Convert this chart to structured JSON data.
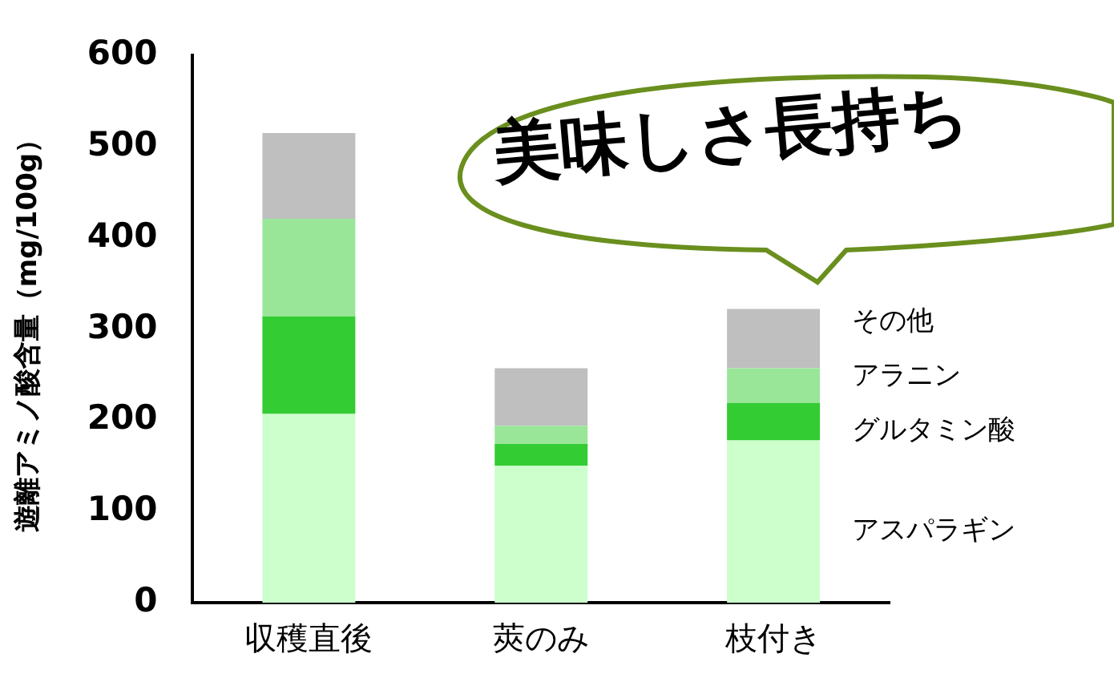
{
  "chart_data": {
    "type": "bar",
    "stacked": true,
    "ylabel": "遊離アミノ酸含量（mg/100g）",
    "categories": [
      "収穫直後",
      "莢のみ",
      "枝付き"
    ],
    "series": [
      {
        "name": "アスパラギン",
        "color": "#ccffcc",
        "values": [
          207,
          150,
          178
        ]
      },
      {
        "name": "グルタミン酸",
        "color": "#33cc33",
        "values": [
          107,
          24,
          41
        ]
      },
      {
        "name": "アラニン",
        "color": "#99e699",
        "values": [
          107,
          20,
          38
        ]
      },
      {
        "name": "その他",
        "color": "#bfbfbf",
        "values": [
          94,
          63,
          65
        ]
      }
    ],
    "ylim": [
      0,
      600
    ],
    "yticks": [
      0,
      100,
      200,
      300,
      400,
      500,
      600
    ],
    "grid": false,
    "legend": "right",
    "annotations": [
      "美味しさ長持ち"
    ]
  }
}
